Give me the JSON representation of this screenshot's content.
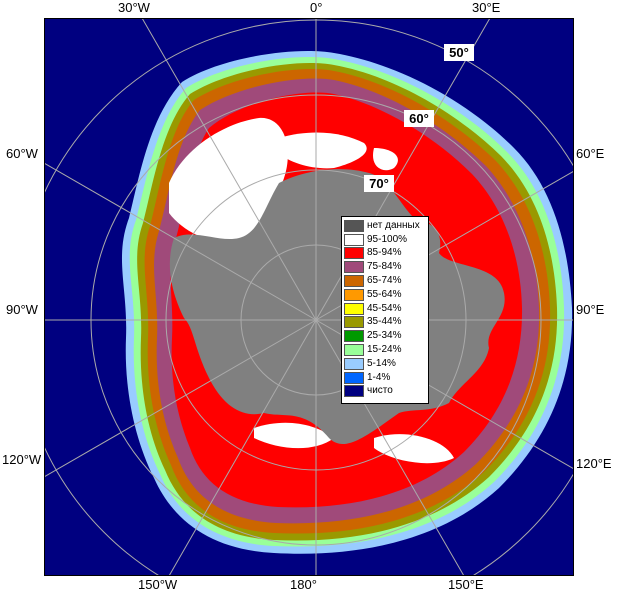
{
  "map": {
    "edge_labels": {
      "top_left": "30°W",
      "top_center": "0°",
      "top_right": "30°E",
      "left_upper": "60°W",
      "left_middle": "90°W",
      "left_lower": "120°W",
      "right_upper": "60°E",
      "right_middle": "90°E",
      "right_lower": "120°E",
      "bottom_left": "150°W",
      "bottom_center": "180°",
      "bottom_right": "150°E"
    },
    "latitude_labels": [
      "50°",
      "60°",
      "70°"
    ]
  },
  "legend": {
    "items": [
      {
        "label": "нет данных",
        "color": "#555555"
      },
      {
        "label": "95-100%",
        "color": "#ffffff"
      },
      {
        "label": "85-94%",
        "color": "#ff0000"
      },
      {
        "label": "75-84%",
        "color": "#a04a7a"
      },
      {
        "label": "65-74%",
        "color": "#cc6600"
      },
      {
        "label": "55-64%",
        "color": "#ff9900"
      },
      {
        "label": "45-54%",
        "color": "#ffff00"
      },
      {
        "label": "35-44%",
        "color": "#999900"
      },
      {
        "label": "25-34%",
        "color": "#009900"
      },
      {
        "label": "15-24%",
        "color": "#99ff99"
      },
      {
        "label": "5-14%",
        "color": "#99ccff"
      },
      {
        "label": "1-4%",
        "color": "#0066ff"
      },
      {
        "label": "чисто",
        "color": "#000080"
      }
    ]
  },
  "colors": {
    "ocean": "#000080",
    "land": "#808080",
    "graticule": "#aaaaaa"
  }
}
